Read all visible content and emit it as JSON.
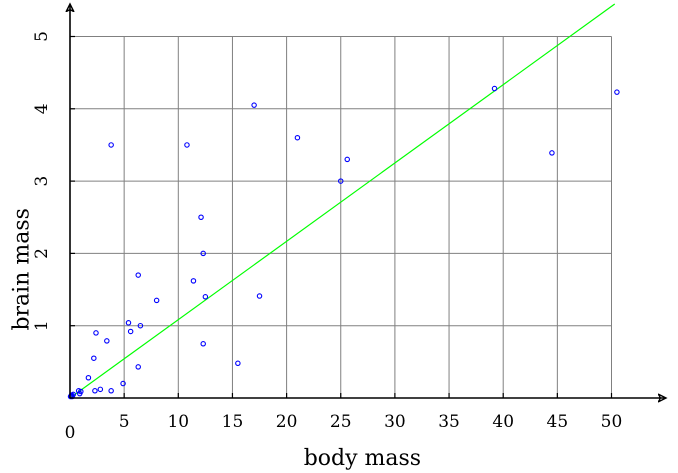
{
  "chart_data": {
    "type": "scatter",
    "title": "",
    "xlabel": "body mass",
    "ylabel": "brain mass",
    "xlim": [
      0,
      55
    ],
    "ylim": [
      0,
      5.5
    ],
    "xticks": [
      5,
      10,
      15,
      20,
      25,
      30,
      35,
      40,
      45,
      50
    ],
    "yticks": [
      1,
      2,
      3,
      4,
      5
    ],
    "grid": true,
    "point_color": "#0000ff",
    "line_color": "#00ff00",
    "series": [
      {
        "type": "scatter",
        "points": [
          [
            0.05,
            0.02
          ],
          [
            0.1,
            0.03
          ],
          [
            0.15,
            0.04
          ],
          [
            0.2,
            0.02
          ],
          [
            0.3,
            0.05
          ],
          [
            0.8,
            0.1
          ],
          [
            0.9,
            0.06
          ],
          [
            1.0,
            0.09
          ],
          [
            1.7,
            0.28
          ],
          [
            2.2,
            0.55
          ],
          [
            2.4,
            0.9
          ],
          [
            2.3,
            0.1
          ],
          [
            2.8,
            0.12
          ],
          [
            3.4,
            0.79
          ],
          [
            3.8,
            0.1
          ],
          [
            3.8,
            3.5
          ],
          [
            4.9,
            0.2
          ],
          [
            5.4,
            1.04
          ],
          [
            5.6,
            0.92
          ],
          [
            6.3,
            0.43
          ],
          [
            6.3,
            1.7
          ],
          [
            6.5,
            1.0
          ],
          [
            8.0,
            1.35
          ],
          [
            10.8,
            3.5
          ],
          [
            11.4,
            1.62
          ],
          [
            12.1,
            2.5
          ],
          [
            12.3,
            2.0
          ],
          [
            12.3,
            0.75
          ],
          [
            12.5,
            1.4
          ],
          [
            15.5,
            0.48
          ],
          [
            17.0,
            4.05
          ],
          [
            17.5,
            1.41
          ],
          [
            21.0,
            3.6
          ],
          [
            25.0,
            3.0
          ],
          [
            25.6,
            3.3
          ],
          [
            39.2,
            4.28
          ],
          [
            44.5,
            3.39
          ],
          [
            50.5,
            4.23
          ]
        ]
      },
      {
        "type": "line",
        "points": [
          [
            0,
            0
          ],
          [
            50.3,
            5.45
          ]
        ]
      }
    ]
  }
}
